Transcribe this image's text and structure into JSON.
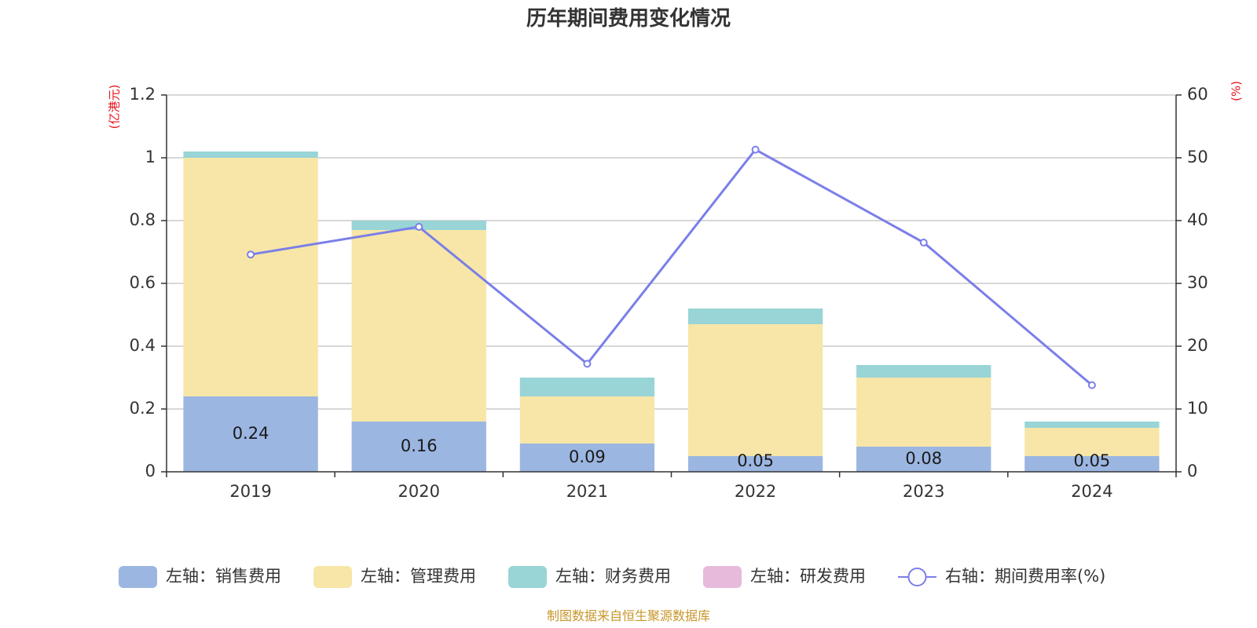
{
  "chart_data": {
    "type": "bar",
    "stacked": true,
    "title": "历年期间费用变化情况",
    "left_axis_unit": "(亿港元)",
    "right_axis_unit": "(%)",
    "ylim": [
      0,
      1.2
    ],
    "y2lim": [
      0,
      60
    ],
    "yticks": [
      "0",
      "0.2",
      "0.4",
      "0.6",
      "0.8",
      "1",
      "1.2"
    ],
    "y2ticks": [
      "0",
      "10",
      "20",
      "30",
      "40",
      "50",
      "60"
    ],
    "categories": [
      "2019",
      "2020",
      "2021",
      "2022",
      "2023",
      "2024"
    ],
    "series": [
      {
        "name": "左轴：销售费用",
        "type": "bar",
        "axis": "left",
        "color": "#9bb6e1",
        "values": [
          0.24,
          0.16,
          0.09,
          0.05,
          0.08,
          0.05
        ],
        "labels": [
          "0.24",
          "0.16",
          "0.09",
          "0.05",
          "0.08",
          "0.05"
        ]
      },
      {
        "name": "左轴：管理费用",
        "type": "bar",
        "axis": "left",
        "color": "#f7e6a7",
        "values": [
          0.76,
          0.61,
          0.15,
          0.42,
          0.22,
          0.09
        ]
      },
      {
        "name": "左轴：财务费用",
        "type": "bar",
        "axis": "left",
        "color": "#99d4d6",
        "values": [
          0.02,
          0.03,
          0.06,
          0.05,
          0.04,
          0.02
        ]
      },
      {
        "name": "左轴：研发费用",
        "type": "bar",
        "axis": "left",
        "color": "#e7b9da",
        "values": [
          0,
          0,
          0,
          0,
          0,
          0
        ]
      },
      {
        "name": "右轴：期间费用率(%)",
        "type": "line",
        "axis": "right",
        "color": "#7b7fe8",
        "values": [
          34.6,
          39.0,
          17.2,
          51.3,
          36.5,
          13.8
        ]
      }
    ],
    "grid": true,
    "legend_position": "bottom",
    "source": "制图数据来自恒生聚源数据库"
  }
}
